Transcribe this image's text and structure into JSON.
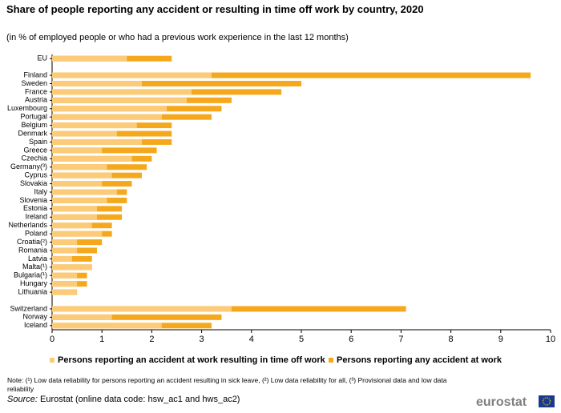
{
  "chart_data": {
    "type": "bar",
    "orientation": "horizontal",
    "title": "Share of people reporting any accident or resulting in time off work by country, 2020",
    "subtitle": "(in % of employed people or who had a previous work experience in the last 12 months)",
    "categories": [
      "EU",
      null,
      "Finland",
      "Sweden",
      "France",
      "Austria",
      "Luxembourg",
      "Portugal",
      "Belgium",
      "Denmark",
      "Spain",
      "Greece",
      "Czechia",
      "Germany(³)",
      "Cyprus",
      "Slovakia",
      "Italy",
      "Slovenia",
      "Estonia",
      "Ireland",
      "Netherlands",
      "Poland",
      "Croatia(²)",
      "Romania",
      "Latvia",
      "Malta(¹)",
      "Bulgaria(¹)",
      "Hungary",
      "Lithuania",
      null,
      "Switzerland",
      "Norway",
      "Iceland"
    ],
    "series": [
      {
        "name": "Persons reporting an accident at work resulting in time off work",
        "color": "#fbcb7a",
        "values": [
          1.5,
          null,
          3.2,
          1.8,
          2.8,
          2.7,
          2.3,
          2.2,
          1.7,
          1.3,
          1.8,
          1.0,
          1.6,
          1.1,
          1.2,
          1.0,
          1.3,
          1.1,
          0.9,
          0.9,
          0.8,
          1.0,
          0.5,
          0.5,
          0.4,
          0.8,
          0.5,
          0.5,
          0.5,
          null,
          3.6,
          1.2,
          2.2
        ]
      },
      {
        "name": "Persons reporting any accident at work",
        "color": "#f6a81c",
        "values": [
          2.4,
          null,
          9.6,
          5.0,
          4.6,
          3.6,
          3.4,
          3.2,
          2.4,
          2.4,
          2.4,
          2.1,
          2.0,
          1.9,
          1.8,
          1.6,
          1.5,
          1.5,
          1.4,
          1.4,
          1.2,
          1.2,
          1.0,
          0.9,
          0.8,
          0.8,
          0.7,
          0.7,
          0.5,
          null,
          7.1,
          3.4,
          3.2
        ]
      }
    ],
    "xlim": [
      0,
      10
    ],
    "xticks": [
      0,
      1,
      2,
      3,
      4,
      5,
      6,
      7,
      8,
      9,
      10
    ],
    "grid": false,
    "legend": "bottom",
    "note": "Note: (¹) Low data reliability for persons reporting an accident resulting in sick leave, (²) Low data reliability for all, (³) Provisional data and low data reliability",
    "source_label": "Source:",
    "source": "Eurostat (online data code: hsw_ac1 and hws_ac2)",
    "logo": "eurostat"
  }
}
